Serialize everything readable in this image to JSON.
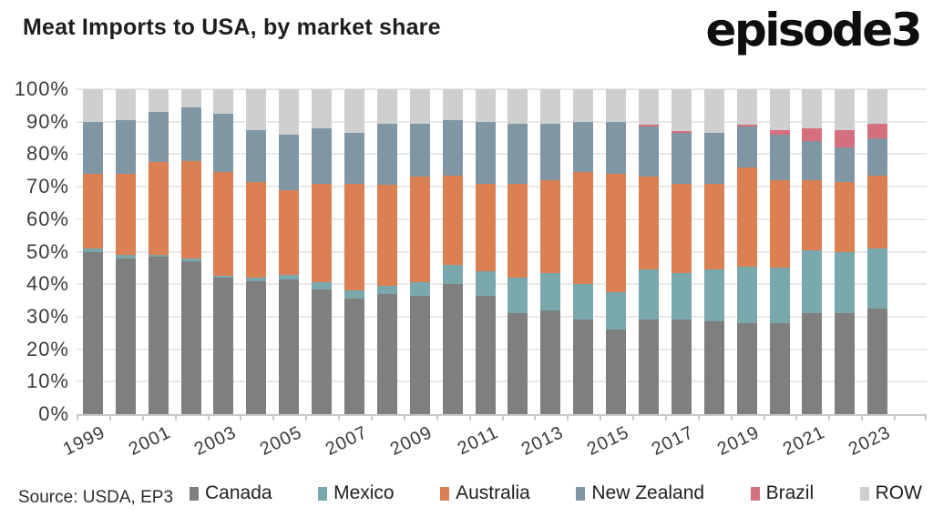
{
  "header": {
    "title": "Meat Imports to USA, by market share",
    "logo": "episode3"
  },
  "footer": {
    "source": "Source: USDA, EP3"
  },
  "chart_data": {
    "type": "bar",
    "stacked": true,
    "unit": "percent",
    "title": "Meat Imports to USA, by market share",
    "categories": [
      "1999",
      "2000",
      "2001",
      "2002",
      "2003",
      "2004",
      "2005",
      "2006",
      "2007",
      "2008",
      "2009",
      "2010",
      "2011",
      "2012",
      "2013",
      "2014",
      "2015",
      "2016",
      "2017",
      "2018",
      "2019",
      "2020",
      "2021",
      "2022",
      "2023"
    ],
    "x_tick_labels": [
      "1999",
      "2001",
      "2003",
      "2005",
      "2007",
      "2009",
      "2011",
      "2013",
      "2015",
      "2017",
      "2019",
      "2021",
      "2023"
    ],
    "series": [
      {
        "name": "Canada",
        "color": "#7f7f7f",
        "values": [
          50,
          48,
          48.5,
          47,
          42,
          41,
          41.5,
          38.5,
          35.5,
          37,
          36.5,
          40,
          36.5,
          31,
          32,
          29,
          26,
          29,
          29,
          28.5,
          28,
          28,
          31,
          31,
          32.5
        ]
      },
      {
        "name": "Mexico",
        "color": "#79a8ad",
        "values": [
          1,
          1,
          0.5,
          1,
          0.5,
          1,
          1.5,
          2,
          2.5,
          2.5,
          4,
          6,
          7.5,
          11,
          11.5,
          11,
          11.5,
          15.5,
          14.5,
          16,
          17.5,
          17,
          19.5,
          19,
          18.5
        ]
      },
      {
        "name": "Australia",
        "color": "#da8052",
        "values": [
          23,
          25,
          28.5,
          30,
          32,
          29.5,
          26,
          30.5,
          33,
          31,
          32.5,
          27.5,
          27,
          29,
          28.5,
          34.5,
          36.5,
          28.5,
          27.5,
          26.5,
          30.5,
          27,
          21.5,
          21.5,
          22.5
        ]
      },
      {
        "name": "New Zealand",
        "color": "#8196a4",
        "values": [
          16,
          16.5,
          15.5,
          16.5,
          18,
          16,
          17,
          17,
          15.5,
          19,
          16.5,
          17,
          19,
          18.5,
          17.5,
          15.5,
          16,
          15.5,
          15.5,
          15.5,
          12.5,
          14,
          12,
          10.5,
          11.5
        ]
      },
      {
        "name": "Brazil",
        "color": "#d4707e",
        "values": [
          0,
          0,
          0,
          0,
          0,
          0,
          0,
          0,
          0,
          0,
          0,
          0,
          0,
          0,
          0,
          0,
          0,
          0.5,
          0.5,
          0,
          0.5,
          1.5,
          4,
          5.5,
          4.5
        ]
      },
      {
        "name": "ROW",
        "color": "#cfcfcf",
        "values": [
          10,
          9.5,
          7,
          5.5,
          7.5,
          12.5,
          14,
          12,
          13.5,
          10.5,
          10.5,
          9.5,
          10,
          10.5,
          10.5,
          10,
          10,
          11,
          13,
          13.5,
          11,
          12.5,
          12,
          12.5,
          10.5
        ]
      }
    ],
    "y_axis": {
      "min": 0,
      "max": 100,
      "step": 10,
      "tick_labels": [
        "0%",
        "10%",
        "20%",
        "30%",
        "40%",
        "50%",
        "60%",
        "70%",
        "80%",
        "90%",
        "100%"
      ]
    },
    "grid": "horizontal",
    "legend_position": "bottom",
    "empty_trailing_slots": 1
  },
  "style_colors": {
    "gridline": "#e9e9e9",
    "axis_line": "#c9c9c9",
    "axis_text": "#3d3d3d"
  }
}
